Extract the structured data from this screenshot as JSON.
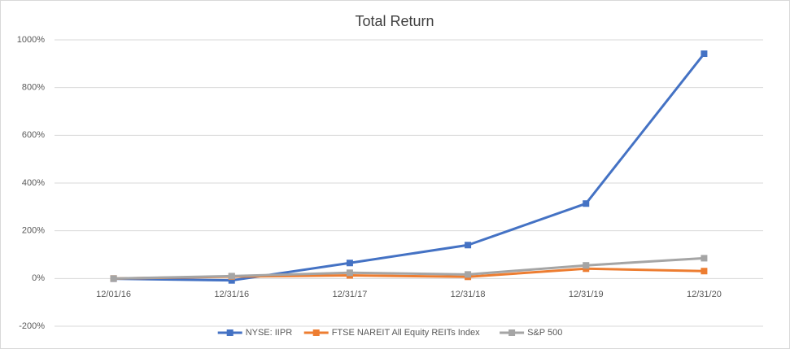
{
  "chart_data": {
    "type": "line",
    "title": "Total Return",
    "categories": [
      "12/01/16",
      "12/31/16",
      "12/31/17",
      "12/31/18",
      "12/31/19",
      "12/31/20"
    ],
    "series": [
      {
        "name": "NYSE: IIPR",
        "color": "#4472c4",
        "values": [
          -1,
          -8,
          65,
          140,
          314,
          942
        ]
      },
      {
        "name": "FTSE NAREIT All Equity REITs Index",
        "color": "#ed7d31",
        "values": [
          0,
          8,
          13,
          7,
          41,
          31
        ]
      },
      {
        "name": "S&P 500",
        "color": "#a5a5a5",
        "values": [
          0,
          10,
          24,
          17,
          55,
          85
        ]
      }
    ],
    "ylim": [
      -200,
      1000
    ],
    "yticks": [
      {
        "value": -200,
        "label": "-200%"
      },
      {
        "value": 0,
        "label": "0%"
      },
      {
        "value": 200,
        "label": "200%"
      },
      {
        "value": 400,
        "label": "400%"
      },
      {
        "value": 600,
        "label": "600%"
      },
      {
        "value": 800,
        "label": "800%"
      },
      {
        "value": 1000,
        "label": "1000%"
      }
    ],
    "grid": true,
    "legend": "bottom"
  }
}
